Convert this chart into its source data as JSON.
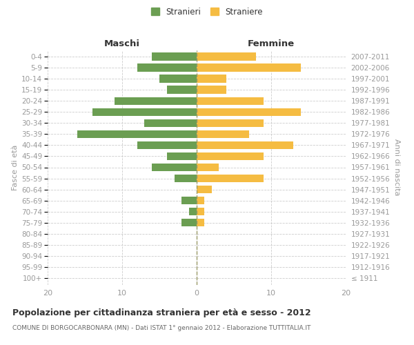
{
  "age_groups": [
    "100+",
    "95-99",
    "90-94",
    "85-89",
    "80-84",
    "75-79",
    "70-74",
    "65-69",
    "60-64",
    "55-59",
    "50-54",
    "45-49",
    "40-44",
    "35-39",
    "30-34",
    "25-29",
    "20-24",
    "15-19",
    "10-14",
    "5-9",
    "0-4"
  ],
  "birth_years": [
    "≤ 1911",
    "1912-1916",
    "1917-1921",
    "1922-1926",
    "1927-1931",
    "1932-1936",
    "1937-1941",
    "1942-1946",
    "1947-1951",
    "1952-1956",
    "1957-1961",
    "1962-1966",
    "1967-1971",
    "1972-1976",
    "1977-1981",
    "1982-1986",
    "1987-1991",
    "1992-1996",
    "1997-2001",
    "2002-2006",
    "2007-2011"
  ],
  "males": [
    0,
    0,
    0,
    0,
    0,
    2,
    1,
    2,
    0,
    3,
    6,
    4,
    8,
    16,
    7,
    14,
    11,
    4,
    5,
    8,
    6
  ],
  "females": [
    0,
    0,
    0,
    0,
    0,
    1,
    1,
    1,
    2,
    9,
    3,
    9,
    13,
    7,
    9,
    14,
    9,
    4,
    4,
    14,
    8
  ],
  "male_color": "#6b9e52",
  "female_color": "#f5bc42",
  "center_line_color": "#999966",
  "grid_color": "#cccccc",
  "title": "Popolazione per cittadinanza straniera per età e sesso - 2012",
  "subtitle": "COMUNE DI BORGOCARBONARA (MN) - Dati ISTAT 1° gennaio 2012 - Elaborazione TUTTITALIA.IT",
  "ylabel_left": "Fasce di età",
  "ylabel_right": "Anni di nascita",
  "header_left": "Maschi",
  "header_right": "Femmine",
  "legend_male": "Stranieri",
  "legend_female": "Straniere",
  "xlim": 20,
  "background_color": "#ffffff",
  "label_color": "#999999",
  "title_color": "#333333",
  "subtitle_color": "#666666"
}
